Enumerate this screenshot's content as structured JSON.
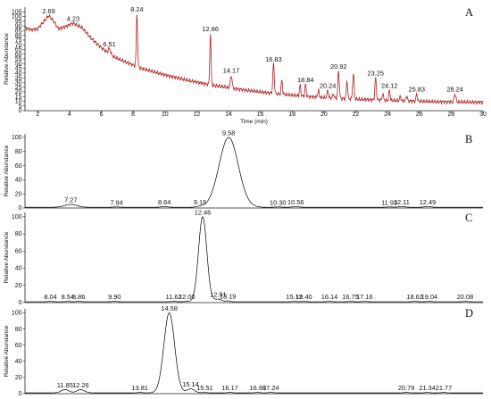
{
  "chart_data": [
    {
      "type": "line",
      "panel": "A",
      "color": "#b22222",
      "ylabel": "Relative Abundance",
      "xlabel": "Time (min)",
      "xlim": [
        1.2,
        30
      ],
      "ylim": [
        0,
        110
      ],
      "xticks": [
        "2",
        "4",
        "6",
        "8",
        "10",
        "12",
        "14",
        "16",
        "18",
        "20",
        "22",
        "24",
        "26",
        "28",
        "30"
      ],
      "yticks": [
        "0",
        "5",
        "10",
        "15",
        "20",
        "25",
        "30",
        "35",
        "40",
        "45",
        "50",
        "55",
        "60",
        "65",
        "70",
        "75",
        "80",
        "85",
        "90",
        "95",
        "100",
        "105"
      ],
      "baseline": [
        [
          1.2,
          88
        ],
        [
          1.6,
          86
        ],
        [
          2.0,
          87
        ],
        [
          2.3,
          93
        ],
        [
          2.69,
          101
        ],
        [
          3.0,
          95
        ],
        [
          3.3,
          87
        ],
        [
          3.7,
          89
        ],
        [
          4.23,
          93
        ],
        [
          4.8,
          88
        ],
        [
          5.3,
          78
        ],
        [
          5.8,
          70
        ],
        [
          6.3,
          63
        ],
        [
          6.8,
          57
        ],
        [
          7.5,
          52
        ],
        [
          8.5,
          45
        ],
        [
          10,
          38
        ],
        [
          11.5,
          32
        ],
        [
          13,
          27
        ],
        [
          15,
          22
        ],
        [
          17,
          18
        ],
        [
          19,
          15
        ],
        [
          21,
          13
        ],
        [
          23,
          11.5
        ],
        [
          25,
          10.5
        ],
        [
          27,
          9.5
        ],
        [
          30,
          9
        ]
      ],
      "peaks": [
        {
          "x": 2.69,
          "y": 101,
          "w": 0.2,
          "label": "2.69"
        },
        {
          "x": 4.23,
          "y": 93,
          "w": 0.3,
          "label": "4.23"
        },
        {
          "x": 6.51,
          "y": 66,
          "w": 0.07,
          "label": "6.51"
        },
        {
          "x": 8.24,
          "y": 103,
          "w": 0.04,
          "label": "8.24"
        },
        {
          "x": 12.86,
          "y": 82,
          "w": 0.04,
          "label": "12.86"
        },
        {
          "x": 14.17,
          "y": 38,
          "w": 0.05,
          "label": "14.17"
        },
        {
          "x": 16.83,
          "y": 50,
          "w": 0.045,
          "label": "16.83"
        },
        {
          "x": 17.35,
          "y": 33,
          "w": 0.04,
          "label": ""
        },
        {
          "x": 18.5,
          "y": 27,
          "w": 0.04,
          "label": ""
        },
        {
          "x": 18.84,
          "y": 28,
          "w": 0.04,
          "label": "18.84"
        },
        {
          "x": 19.65,
          "y": 22,
          "w": 0.04,
          "label": ""
        },
        {
          "x": 20.24,
          "y": 22,
          "w": 0.04,
          "label": "20.24"
        },
        {
          "x": 20.6,
          "y": 18,
          "w": 0.04,
          "label": ""
        },
        {
          "x": 20.92,
          "y": 42,
          "w": 0.045,
          "label": "20.92"
        },
        {
          "x": 21.45,
          "y": 32,
          "w": 0.04,
          "label": ""
        },
        {
          "x": 21.85,
          "y": 39,
          "w": 0.045,
          "label": ""
        },
        {
          "x": 23.25,
          "y": 35,
          "w": 0.045,
          "label": "23.25"
        },
        {
          "x": 23.7,
          "y": 18,
          "w": 0.04,
          "label": ""
        },
        {
          "x": 24.12,
          "y": 22,
          "w": 0.04,
          "label": "24.12"
        },
        {
          "x": 24.8,
          "y": 15,
          "w": 0.04,
          "label": ""
        },
        {
          "x": 25.2,
          "y": 16,
          "w": 0.04,
          "label": ""
        },
        {
          "x": 25.83,
          "y": 18,
          "w": 0.04,
          "label": "25.83"
        },
        {
          "x": 28.24,
          "y": 18,
          "w": 0.05,
          "label": "28.24"
        }
      ]
    },
    {
      "type": "line",
      "panel": "B",
      "color": "#000000",
      "ylabel": "Relative Abundance",
      "xlim": [
        6.6,
        13.3
      ],
      "ylim": [
        0,
        105
      ],
      "yticks": [
        "0",
        "20",
        "40",
        "60",
        "80",
        "100"
      ],
      "baseline": [
        [
          6.6,
          1
        ],
        [
          13.3,
          1
        ]
      ],
      "peaks": [
        {
          "x": 9.58,
          "y": 100,
          "w": 0.14,
          "label": "9.58"
        },
        {
          "x": 7.27,
          "y": 5,
          "w": 0.09,
          "label": "7.27"
        },
        {
          "x": 7.94,
          "y": 1.5,
          "w": 0.05,
          "label": "7.94"
        },
        {
          "x": 8.64,
          "y": 2,
          "w": 0.05,
          "label": "8.64"
        },
        {
          "x": 9.16,
          "y": 2,
          "w": 0.05,
          "label": "9.16"
        },
        {
          "x": 10.3,
          "y": 1.5,
          "w": 0.05,
          "label": "10.30"
        },
        {
          "x": 10.56,
          "y": 2,
          "w": 0.05,
          "label": "10.56"
        },
        {
          "x": 11.93,
          "y": 1.5,
          "w": 0.05,
          "label": "11.93"
        },
        {
          "x": 12.11,
          "y": 2,
          "w": 0.05,
          "label": "12.11"
        },
        {
          "x": 12.49,
          "y": 2,
          "w": 0.05,
          "label": "12.49"
        }
      ]
    },
    {
      "type": "line",
      "panel": "C",
      "color": "#000000",
      "ylabel": "Relative Abundance",
      "xlim": [
        7.3,
        20.6
      ],
      "ylim": [
        0,
        105
      ],
      "yticks": [
        "0",
        "20",
        "40",
        "60",
        "80",
        "100"
      ],
      "baseline": [
        [
          7.3,
          1
        ],
        [
          20.6,
          1
        ]
      ],
      "peaks": [
        {
          "x": 12.46,
          "y": 100,
          "w": 0.12,
          "label": "12.46"
        },
        {
          "x": 8.04,
          "y": 1.5,
          "w": 0.06,
          "label": "8.04"
        },
        {
          "x": 8.54,
          "y": 1.5,
          "w": 0.06,
          "label": "8.54"
        },
        {
          "x": 8.86,
          "y": 1.5,
          "w": 0.06,
          "label": "8.86"
        },
        {
          "x": 9.9,
          "y": 1.5,
          "w": 0.06,
          "label": "9.90"
        },
        {
          "x": 11.62,
          "y": 1.5,
          "w": 0.06,
          "label": "11.62"
        },
        {
          "x": 12.0,
          "y": 1.5,
          "w": 0.06,
          "label": "12.00"
        },
        {
          "x": 12.91,
          "y": 4,
          "w": 0.1,
          "label": "12.91"
        },
        {
          "x": 13.19,
          "y": 2,
          "w": 0.06,
          "label": "13.19"
        },
        {
          "x": 15.12,
          "y": 1.5,
          "w": 0.06,
          "label": "15.12"
        },
        {
          "x": 15.4,
          "y": 1.5,
          "w": 0.06,
          "label": "15.40"
        },
        {
          "x": 16.14,
          "y": 1.5,
          "w": 0.06,
          "label": "16.14"
        },
        {
          "x": 16.75,
          "y": 1.5,
          "w": 0.06,
          "label": "16.75"
        },
        {
          "x": 17.16,
          "y": 1.5,
          "w": 0.06,
          "label": "17.16"
        },
        {
          "x": 18.62,
          "y": 1.5,
          "w": 0.06,
          "label": "18.62"
        },
        {
          "x": 19.04,
          "y": 1.5,
          "w": 0.06,
          "label": "19.04"
        },
        {
          "x": 20.08,
          "y": 1.5,
          "w": 0.06,
          "label": "20.08"
        }
      ]
    },
    {
      "type": "line",
      "panel": "D",
      "color": "#000000",
      "ylabel": "Relative Abundance",
      "xlim": [
        10.8,
        22.8
      ],
      "ylim": [
        0,
        105
      ],
      "yticks": [
        "0",
        "20",
        "40",
        "60",
        "80",
        "100"
      ],
      "baseline": [
        [
          10.8,
          1
        ],
        [
          22.8,
          1
        ]
      ],
      "peaks": [
        {
          "x": 14.58,
          "y": 100,
          "w": 0.14,
          "label": "14.58"
        },
        {
          "x": 11.85,
          "y": 5,
          "w": 0.1,
          "label": "11.85"
        },
        {
          "x": 12.26,
          "y": 5,
          "w": 0.1,
          "label": "12.26"
        },
        {
          "x": 13.81,
          "y": 1.5,
          "w": 0.06,
          "label": "13.81"
        },
        {
          "x": 15.14,
          "y": 6,
          "w": 0.1,
          "label": "15.14"
        },
        {
          "x": 15.51,
          "y": 1.5,
          "w": 0.06,
          "label": "15.51"
        },
        {
          "x": 16.17,
          "y": 1.5,
          "w": 0.06,
          "label": "16.17"
        },
        {
          "x": 16.9,
          "y": 1.5,
          "w": 0.06,
          "label": "16.90"
        },
        {
          "x": 17.24,
          "y": 1.5,
          "w": 0.06,
          "label": "17.24"
        },
        {
          "x": 20.79,
          "y": 1.5,
          "w": 0.06,
          "label": "20.79"
        },
        {
          "x": 21.34,
          "y": 1.5,
          "w": 0.06,
          "label": "21.34"
        },
        {
          "x": 21.77,
          "y": 1.5,
          "w": 0.06,
          "label": "21.77"
        }
      ]
    }
  ]
}
